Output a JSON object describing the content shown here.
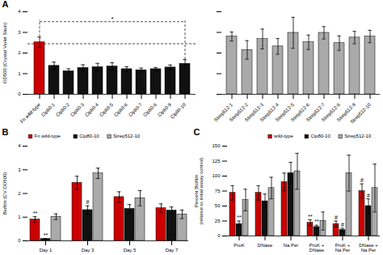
{
  "chart_data": [
    {
      "type": "bar",
      "title": "A",
      "categories": [
        "Fn wild-type",
        "Cip80-1",
        "Cip80-2",
        "Cip80-3",
        "Cip80-4",
        "Cip80-5",
        "Cip80-6",
        "Cip80-7",
        "Cip80-8",
        "Cip80-9",
        "Cip80-10"
      ],
      "values": [
        2.52,
        1.38,
        1.12,
        1.28,
        1.32,
        1.35,
        1.22,
        1.17,
        1.22,
        1.3,
        1.48
      ],
      "errors": [
        0.25,
        0.18,
        0.12,
        0.15,
        0.18,
        0.18,
        0.12,
        0.1,
        0.08,
        0.12,
        0.2
      ],
      "colors": [
        "#cc0000",
        "#111111",
        "#111111",
        "#111111",
        "#111111",
        "#111111",
        "#111111",
        "#111111",
        "#111111",
        "#111111",
        "#111111"
      ],
      "ylabel": "OD500 (Crystal Violet Stain)",
      "ylim": [
        0,
        4
      ],
      "yticks": [
        0,
        1,
        2,
        3,
        4
      ],
      "grid": false,
      "annotations": [
        {
          "text": "*",
          "from": "Fn wild-type",
          "to": "Cip80-10",
          "y": 3.52,
          "line_style": "dashed"
        }
      ],
      "reference_lines": [
        {
          "y": 2.45,
          "line_style": "dashed"
        }
      ]
    },
    {
      "type": "bar",
      "categories": [
        "Strep512-1",
        "Strep512-2",
        "Strep512-3",
        "Strep512-4",
        "Strep512-5",
        "Strep512-6",
        "Strep512-7",
        "Strep512-8",
        "Strep512-9",
        "Strep512-10"
      ],
      "values": [
        2.8,
        2.15,
        2.68,
        2.32,
        2.98,
        2.52,
        2.98,
        2.48,
        2.75,
        2.8
      ],
      "errors": [
        0.22,
        0.45,
        0.48,
        0.38,
        0.75,
        0.35,
        0.3,
        0.35,
        0.3,
        0.3
      ],
      "color": "#aaaaaa",
      "ylim": [
        0,
        4
      ],
      "yticks": [
        0,
        1,
        2,
        3,
        4
      ],
      "tick_labels": "x",
      "grid": false
    },
    {
      "type": "bar",
      "title": "B",
      "categories": [
        "Day 1",
        "Day 3",
        "Day 5",
        "Day 7"
      ],
      "series": [
        {
          "name": "Fn wild-type",
          "color": "#cc0000",
          "values": [
            0.9,
            2.45,
            1.85,
            1.38
          ],
          "errors": [
            0.12,
            0.28,
            0.22,
            0.18
          ]
        },
        {
          "name": "Cip80-10",
          "color": "#111111",
          "values": [
            0.08,
            1.3,
            1.35,
            1.28
          ],
          "errors": [
            0.02,
            0.18,
            0.18,
            0.15
          ]
        },
        {
          "name": "Strep512-10",
          "color": "#aaaaaa",
          "values": [
            1.02,
            2.85,
            1.8,
            1.12
          ],
          "errors": [
            0.12,
            0.22,
            0.32,
            0.18
          ]
        }
      ],
      "ylabel": "Biofilm (CV OD500)",
      "ylim": [
        0,
        4
      ],
      "yticks": [
        0,
        1,
        2,
        3,
        4
      ],
      "grid": false,
      "legend": "upper left",
      "annotations": [
        {
          "text": "**",
          "series": "Fn wild-type",
          "category": "Day 1"
        },
        {
          "text": "**",
          "series": "Cip80-10",
          "category": "Day 1"
        },
        {
          "text": "#",
          "series": "Cip80-10",
          "category": "Day 3"
        }
      ]
    },
    {
      "type": "bar",
      "title": "C",
      "categories": [
        "ProK",
        "DNase",
        "Na Per",
        "ProK +\nDNase",
        "ProK +\nNa Per",
        "DNase +\nNa Per"
      ],
      "series": [
        {
          "name": "wild-type",
          "color": "#cc0000",
          "values": [
            72,
            72,
            90,
            22,
            20,
            75
          ],
          "errors": [
            12,
            12,
            15,
            5,
            5,
            12
          ]
        },
        {
          "name": "Cip80-10",
          "color": "#111111",
          "values": [
            20,
            58,
            105,
            15,
            10,
            50
          ],
          "errors": [
            5,
            12,
            18,
            3,
            3,
            12
          ]
        },
        {
          "name": "Strep512-10",
          "color": "#aaaaaa",
          "values": [
            60,
            80,
            108,
            25,
            105,
            80
          ],
          "errors": [
            18,
            18,
            30,
            15,
            30,
            40
          ]
        }
      ],
      "ylabel": "Percent Biofilm\n(relative to initial assay control)",
      "ylim": [
        0,
        150
      ],
      "yticks": [
        0,
        25,
        50,
        75,
        100,
        125,
        150
      ],
      "grid": false,
      "legend": "upper right",
      "annotations": [
        {
          "text": "**",
          "series": "Cip80-10",
          "category": "ProK"
        },
        {
          "text": "**",
          "series": "wild-type",
          "category": "ProK +\nDNase"
        },
        {
          "text": "**",
          "series": "Cip80-10",
          "category": "ProK +\nDNase"
        },
        {
          "text": "#",
          "series": "wild-type",
          "category": "ProK +\nNa Per"
        },
        {
          "text": "#",
          "series": "Cip80-10",
          "category": "ProK +\nNa Per"
        },
        {
          "text": "#",
          "series": "wild-type",
          "category": "DNase +\nNa Per"
        },
        {
          "text": "#",
          "series": "Cip80-10",
          "category": "DNase +\nNa Per"
        }
      ]
    }
  ]
}
